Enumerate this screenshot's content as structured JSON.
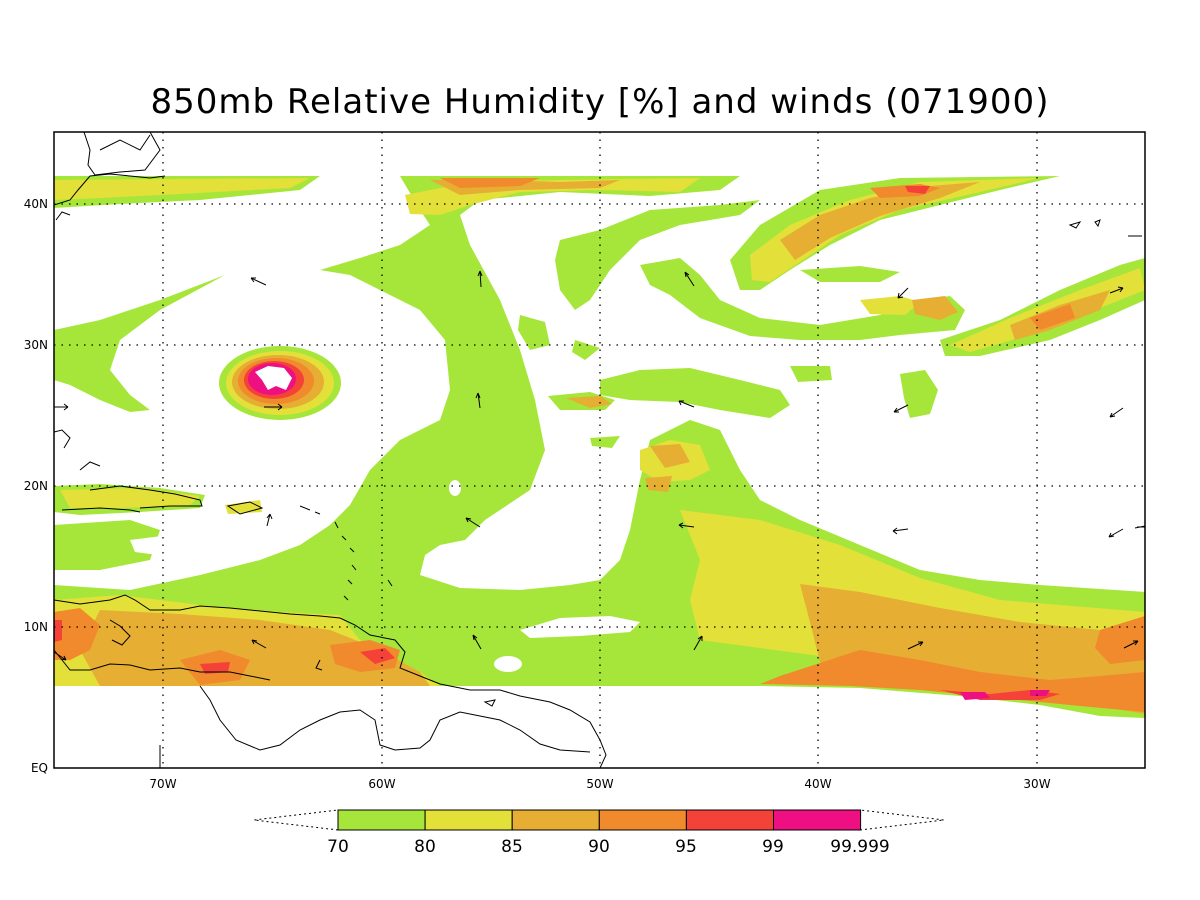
{
  "figure": {
    "title": "850mb Relative Humidity [%] and winds (071900)"
  },
  "map": {
    "lon_ticks": [
      "70W",
      "60W",
      "50W",
      "40W",
      "30W"
    ],
    "lat_ticks": [
      "40N",
      "30N",
      "20N",
      "10N",
      "EQ"
    ],
    "grid": "dotted"
  },
  "colorbar": {
    "labels": [
      "70",
      "80",
      "85",
      "90",
      "95",
      "99",
      "99.999"
    ],
    "bins": [
      {
        "range": "70-80",
        "color": "#a6e63a"
      },
      {
        "range": "80-85",
        "color": "#e3e03a"
      },
      {
        "range": "85-90",
        "color": "#e6ae32"
      },
      {
        "range": "90-95",
        "color": "#f08a2c"
      },
      {
        "range": "95-99",
        "color": "#f54238"
      },
      {
        "range": "99-99.999",
        "color": "#ee0f82"
      }
    ],
    "extend": "both"
  }
}
